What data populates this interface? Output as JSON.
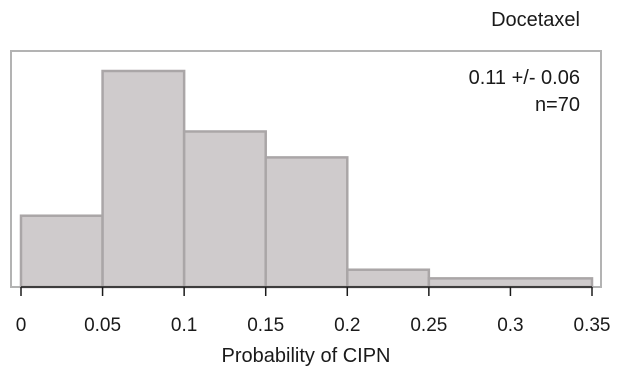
{
  "chart_data": {
    "type": "bar",
    "title": "Docetaxel",
    "annotation": {
      "mean_sd": "0.11 +/- 0.06",
      "n": "n=70"
    },
    "xlabel": "Probability of CIPN",
    "ylabel": "",
    "xlim": [
      0,
      0.35
    ],
    "ylim": [
      0,
      1.05
    ],
    "bins": [
      {
        "x0": 0.0,
        "x1": 0.05,
        "height": 0.33
      },
      {
        "x0": 0.05,
        "x1": 0.1,
        "height": 1.0
      },
      {
        "x0": 0.1,
        "x1": 0.15,
        "height": 0.72
      },
      {
        "x0": 0.15,
        "x1": 0.2,
        "height": 0.6
      },
      {
        "x0": 0.2,
        "x1": 0.25,
        "height": 0.08
      },
      {
        "x0": 0.25,
        "x1": 0.35,
        "height": 0.04
      }
    ],
    "xticks": [
      "0",
      "0.05",
      "0.1",
      "0.15",
      "0.2",
      "0.25",
      "0.3",
      "0.35"
    ],
    "xtick_values": [
      0,
      0.05,
      0.1,
      0.15,
      0.2,
      0.25,
      0.3,
      0.35
    ],
    "grid": false,
    "colors": {
      "bar_fill": "#cfcbcc",
      "bar_edge": "#aaa6a7",
      "frame": "#b3b3b3"
    }
  }
}
